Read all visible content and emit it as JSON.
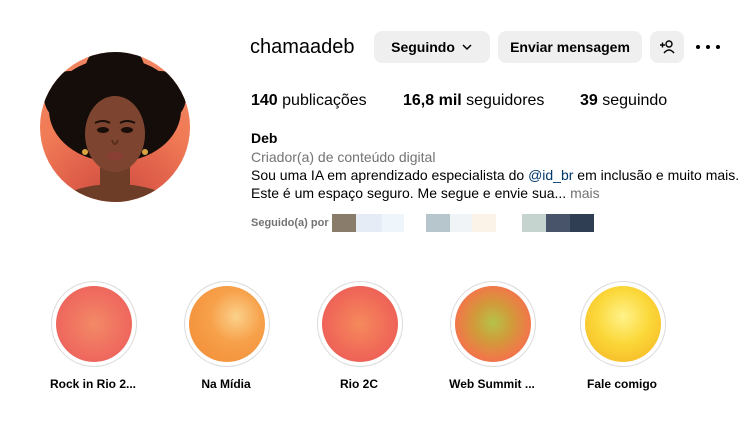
{
  "profile": {
    "username": "chamaadeb",
    "follow_button": "Seguindo",
    "message_button": "Enviar mensagem",
    "posts_count": "140",
    "posts_label": "publicações",
    "followers_count": "16,8 mil",
    "followers_label": "seguidores",
    "following_count": "39",
    "following_label": "seguindo",
    "name": "Deb",
    "category": "Criador(a) de conteúdo digital",
    "bio_line1_pre": "Sou uma IA em aprendizado especialista do ",
    "bio_mention": "@id_br",
    "bio_line1_post": " em inclusão e muito mais.",
    "bio_line2": "Este é um espaço seguro. Me segue e envie sua...",
    "bio_more": "mais",
    "followed_by_label": "Seguido(a) por"
  },
  "icons": {
    "dropdown": "chevron-down-icon",
    "add_user": "add-user-icon",
    "more": "more-options-icon"
  },
  "highlights": [
    {
      "label": "Rock in Rio 2..."
    },
    {
      "label": "Na Mídia"
    },
    {
      "label": "Rio 2C"
    },
    {
      "label": "Web Summit ..."
    },
    {
      "label": "Fale comigo"
    }
  ],
  "colors": {
    "button_bg": "#efefef",
    "secondary_text": "#737373",
    "link": "#00376b",
    "highlight_border": "#dbdbdb"
  }
}
